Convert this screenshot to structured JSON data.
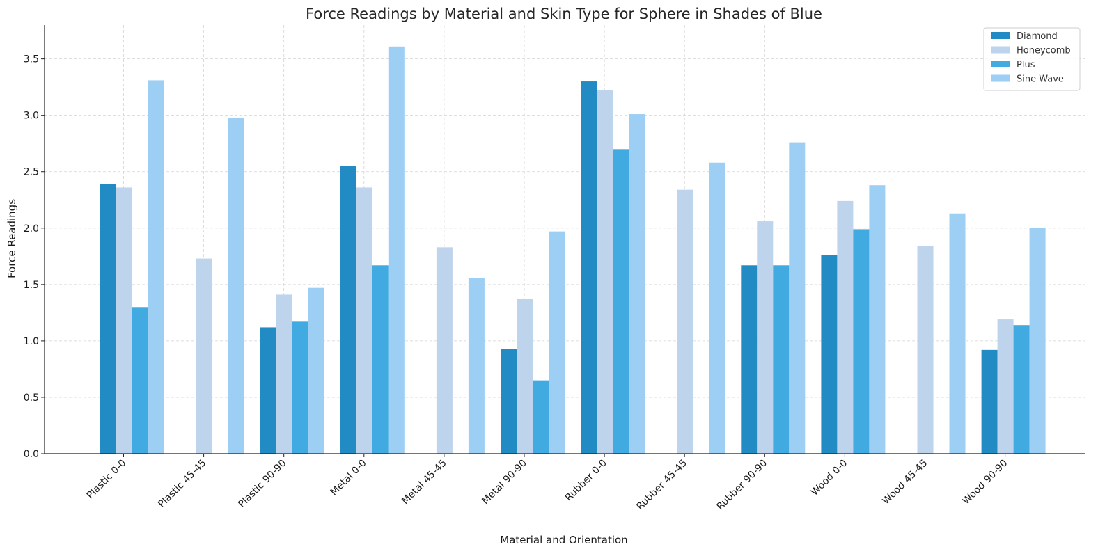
{
  "chart_data": {
    "type": "bar",
    "title": "Force Readings by Material and Skin Type for Sphere in Shades of Blue",
    "xlabel": "Material and Orientation",
    "ylabel": "Force Readings",
    "ylim": [
      0,
      3.8
    ],
    "yticks": [
      0.0,
      0.5,
      1.0,
      1.5,
      2.0,
      2.5,
      3.0,
      3.5
    ],
    "ytick_labels": [
      "0.0",
      "0.5",
      "1.0",
      "1.5",
      "2.0",
      "2.5",
      "3.0",
      "3.5"
    ],
    "grid": true,
    "legend_position": "top-right",
    "categories": [
      "Plastic 0-0",
      "Plastic 45-45",
      "Plastic 90-90",
      "Metal 0-0",
      "Metal 45-45",
      "Metal 90-90",
      "Rubber 0-0",
      "Rubber 45-45",
      "Rubber 90-90",
      "Wood 0-0",
      "Wood 45-45",
      "Wood 90-90"
    ],
    "series": [
      {
        "name": "Diamond",
        "color": "#238bc4",
        "values": [
          2.39,
          null,
          1.12,
          2.55,
          null,
          0.93,
          3.3,
          null,
          1.67,
          1.76,
          null,
          0.92
        ]
      },
      {
        "name": "Honeycomb",
        "color": "#bed3ec",
        "values": [
          2.36,
          1.73,
          1.41,
          2.36,
          1.83,
          1.37,
          3.22,
          2.34,
          2.06,
          2.24,
          1.84,
          1.19
        ]
      },
      {
        "name": "Plus",
        "color": "#41aae1",
        "values": [
          1.3,
          null,
          1.17,
          1.67,
          null,
          0.65,
          2.7,
          null,
          1.67,
          1.99,
          null,
          1.14
        ]
      },
      {
        "name": "Sine Wave",
        "color": "#9dcef4",
        "values": [
          3.31,
          2.98,
          1.47,
          3.61,
          1.56,
          1.97,
          3.01,
          2.58,
          2.76,
          2.38,
          2.13,
          2.0
        ]
      }
    ]
  }
}
